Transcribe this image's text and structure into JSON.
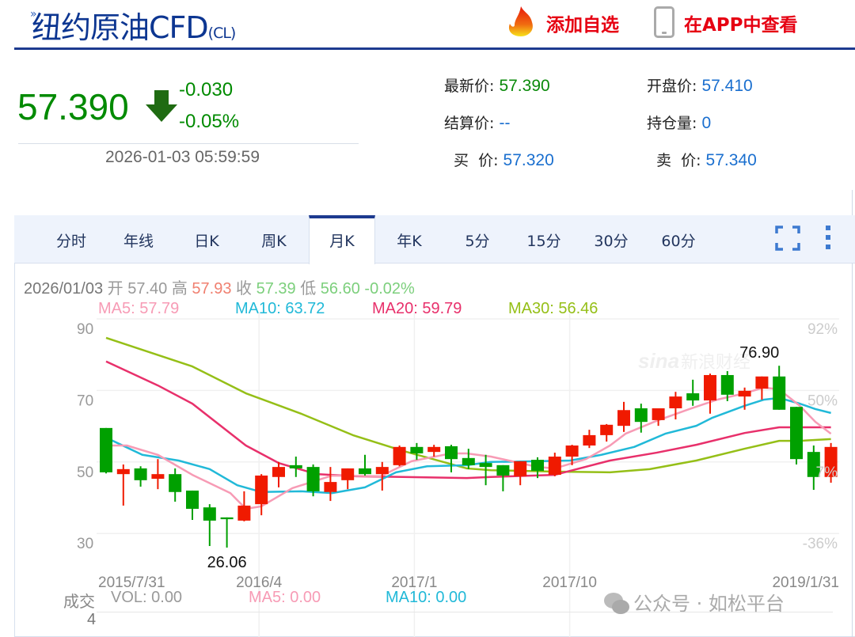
{
  "header": {
    "title": "纽约原油CFD",
    "code": "(CL)",
    "add_watchlist": "添加自选",
    "view_in_app": "在APP中查看"
  },
  "quote": {
    "price": "57.390",
    "direction": "down",
    "change": "-0.030",
    "change_pct": "-0.05%",
    "time": "2026-01-03 05:59:59"
  },
  "fields": [
    {
      "label": "最新价:",
      "value": "57.390",
      "color": "#0a8a0a"
    },
    {
      "label": "开盘价:",
      "value": "57.410",
      "color": "#1a6fcf"
    },
    {
      "label": "结算价:",
      "value": "--",
      "color": "#1a6fcf"
    },
    {
      "label": "持仓量:",
      "value": "0",
      "color": "#1a6fcf"
    },
    {
      "label": "买  价:",
      "value": "57.320",
      "color": "#1a6fcf"
    },
    {
      "label": "卖  价:",
      "value": "57.340",
      "color": "#1a6fcf"
    }
  ],
  "tabs": [
    {
      "label": "分时"
    },
    {
      "label": "年线"
    },
    {
      "label": "日K"
    },
    {
      "label": "周K"
    },
    {
      "label": "月K",
      "active": true
    },
    {
      "label": "年K"
    },
    {
      "label": "5分"
    },
    {
      "label": "15分"
    },
    {
      "label": "30分"
    },
    {
      "label": "60分"
    }
  ],
  "toolbar_icons": [
    "fullscreen-icon",
    "more-vertical-icon"
  ],
  "ohlc_info": {
    "date": "2026/01/03",
    "open_label": "开",
    "open": "57.40",
    "high_label": "高",
    "high": "57.93",
    "close_label": "收",
    "close": "57.39",
    "low_label": "低",
    "low": "56.60",
    "change": "-0.02%"
  },
  "ma_info": {
    "ma5": "MA5: 57.79",
    "ma10": "MA10: 63.72",
    "ma20": "MA20: 59.79",
    "ma30": "MA30: 56.46"
  },
  "volume": {
    "label": "成交",
    "vol": "VOL: 0.00",
    "ma5": "MA5: 0.00",
    "ma10": "MA10: 0.00",
    "axis_value": "4"
  },
  "watermark": {
    "sina": "sina新浪财经",
    "wechat": "公众号 · 如松平台"
  },
  "colors": {
    "up": "#f01a00",
    "down": "#00a000",
    "ma5": "#f79bb5",
    "ma10": "#21b9d8",
    "ma20": "#e8306b",
    "ma30": "#95bf17",
    "brand": "#1d3a8f"
  },
  "chart_data": {
    "type": "candlestick",
    "ylim": [
      26,
      90
    ],
    "y_ticks": [
      "90",
      "70",
      "50",
      "30"
    ],
    "y_ticks_right": [
      "92%",
      "50%",
      "7%",
      "-36%"
    ],
    "x_labels": [
      {
        "index": 0,
        "label": "2015/7/31"
      },
      {
        "index": 9,
        "label": "2016/4"
      },
      {
        "index": 18,
        "label": "2017/1"
      },
      {
        "index": 27,
        "label": "2017/10"
      },
      {
        "index": 42,
        "label": "2019/1/31"
      }
    ],
    "annotations": [
      {
        "index": 7,
        "label": "26.06"
      },
      {
        "index": 39,
        "label": "76.90"
      }
    ],
    "candles": [
      [
        59.5,
        59.5,
        46.8,
        47.1
      ],
      [
        46.6,
        49.3,
        37.8,
        48.0
      ],
      [
        48.2,
        48.8,
        43.1,
        44.9
      ],
      [
        45.3,
        50.8,
        42.4,
        46.6
      ],
      [
        46.6,
        48.2,
        38.9,
        41.6
      ],
      [
        42.0,
        42.0,
        33.8,
        36.9
      ],
      [
        37.3,
        38.2,
        26.5,
        33.6
      ],
      [
        34.5,
        34.5,
        26.06,
        34.0
      ],
      [
        33.6,
        41.8,
        33.4,
        37.8
      ],
      [
        38.2,
        46.6,
        35.1,
        46.2
      ],
      [
        45.8,
        50.0,
        42.9,
        48.6
      ],
      [
        49.1,
        51.5,
        45.8,
        48.2
      ],
      [
        48.6,
        49.3,
        40.4,
        41.8
      ],
      [
        41.6,
        48.6,
        39.1,
        44.4
      ],
      [
        44.9,
        48.2,
        42.4,
        48.2
      ],
      [
        48.2,
        52.0,
        46.2,
        46.6
      ],
      [
        46.6,
        50.0,
        42.0,
        48.6
      ],
      [
        49.1,
        54.6,
        48.8,
        54.2
      ],
      [
        54.2,
        55.3,
        50.6,
        52.4
      ],
      [
        52.8,
        54.8,
        51.5,
        54.2
      ],
      [
        54.4,
        54.8,
        47.1,
        50.8
      ],
      [
        51.1,
        53.7,
        48.0,
        49.1
      ],
      [
        49.7,
        52.0,
        43.5,
        48.6
      ],
      [
        49.1,
        49.1,
        41.8,
        46.2
      ],
      [
        46.0,
        50.2,
        43.5,
        50.2
      ],
      [
        50.6,
        51.3,
        45.5,
        47.5
      ],
      [
        46.4,
        52.6,
        46.0,
        51.5
      ],
      [
        51.5,
        54.8,
        49.1,
        54.6
      ],
      [
        54.6,
        59.0,
        53.9,
        57.5
      ],
      [
        57.5,
        60.6,
        55.7,
        60.4
      ],
      [
        60.1,
        66.8,
        58.4,
        64.5
      ],
      [
        65.0,
        66.3,
        58.2,
        61.2
      ],
      [
        61.7,
        65.0,
        60.1,
        65.0
      ],
      [
        65.0,
        69.6,
        61.9,
        68.3
      ],
      [
        69.2,
        73.0,
        65.7,
        67.2
      ],
      [
        67.2,
        74.7,
        63.5,
        74.3
      ],
      [
        74.3,
        75.4,
        67.0,
        68.8
      ],
      [
        68.3,
        70.8,
        64.6,
        69.9
      ],
      [
        70.5,
        73.9,
        67.4,
        73.9
      ],
      [
        73.9,
        76.9,
        64.6,
        64.6
      ],
      [
        65.4,
        65.4,
        49.3,
        50.8
      ],
      [
        52.8,
        54.6,
        42.2,
        45.8
      ],
      [
        45.8,
        55.3,
        44.2,
        54.2
      ]
    ],
    "candle_fields": [
      "open",
      "high",
      "low",
      "close"
    ],
    "ma_series": {
      "ma5": [
        [
          0,
          54.6
        ],
        [
          1.2,
          54.6
        ],
        [
          3,
          52.0
        ],
        [
          5,
          46.4
        ],
        [
          7.2,
          41.3
        ],
        [
          8.1,
          36.9
        ],
        [
          9,
          37.6
        ],
        [
          10.8,
          42.7
        ],
        [
          13.1,
          46.2
        ],
        [
          15.9,
          46.0
        ],
        [
          17.7,
          50.2
        ],
        [
          20,
          52.4
        ],
        [
          20.9,
          52.4
        ],
        [
          22.3,
          51.5
        ],
        [
          25,
          48.6
        ],
        [
          26,
          48.2
        ],
        [
          27.8,
          50.8
        ],
        [
          29.2,
          54.6
        ],
        [
          30.1,
          57.9
        ],
        [
          31.9,
          61.5
        ],
        [
          33.8,
          64.8
        ],
        [
          35.4,
          67.4
        ],
        [
          37,
          69.2
        ],
        [
          38.1,
          70.8
        ],
        [
          39,
          70.3
        ],
        [
          40.2,
          65.7
        ],
        [
          41.1,
          61.2
        ],
        [
          42,
          57.9
        ]
      ],
      "ma10": [
        [
          0,
          56.8
        ],
        [
          2.1,
          52.0
        ],
        [
          4.2,
          50.4
        ],
        [
          6,
          48.0
        ],
        [
          7.6,
          43.5
        ],
        [
          9,
          41.6
        ],
        [
          11.3,
          41.8
        ],
        [
          13.1,
          41.3
        ],
        [
          15,
          42.9
        ],
        [
          16.8,
          47.1
        ],
        [
          18.6,
          48.8
        ],
        [
          20.9,
          49.1
        ],
        [
          22.3,
          50.0
        ],
        [
          25,
          50.2
        ],
        [
          26.9,
          50.4
        ],
        [
          28.7,
          52.0
        ],
        [
          30.6,
          54.2
        ],
        [
          32.4,
          57.9
        ],
        [
          34.2,
          60.1
        ],
        [
          35.1,
          62.3
        ],
        [
          37,
          65.7
        ],
        [
          38.1,
          67.4
        ],
        [
          39,
          67.9
        ],
        [
          40.2,
          66.3
        ],
        [
          41.1,
          64.8
        ],
        [
          42,
          63.7
        ]
      ],
      "ma20": [
        [
          0,
          78.1
        ],
        [
          3,
          71.4
        ],
        [
          5,
          66.3
        ],
        [
          8.1,
          54.6
        ],
        [
          10,
          49.7
        ],
        [
          12.2,
          46.6
        ],
        [
          14.5,
          46.0
        ],
        [
          17.2,
          45.8
        ],
        [
          20.9,
          45.5
        ],
        [
          22.3,
          45.8
        ],
        [
          26,
          46.4
        ],
        [
          29.2,
          50.4
        ],
        [
          31.9,
          52.6
        ],
        [
          34.2,
          54.8
        ],
        [
          37,
          58.1
        ],
        [
          39,
          59.7
        ],
        [
          42,
          59.7
        ]
      ],
      "ma30": [
        [
          0,
          84.7
        ],
        [
          5,
          76.7
        ],
        [
          8.1,
          69.2
        ],
        [
          11.3,
          63.5
        ],
        [
          14.3,
          57.5
        ],
        [
          17.2,
          53.1
        ],
        [
          20.9,
          48.2
        ],
        [
          22.3,
          47.7
        ],
        [
          26,
          47.3
        ],
        [
          29.2,
          47.1
        ],
        [
          31.5,
          48.0
        ],
        [
          34.2,
          50.4
        ],
        [
          37,
          53.7
        ],
        [
          39,
          55.9
        ],
        [
          40.2,
          55.9
        ],
        [
          42,
          56.4
        ]
      ]
    }
  }
}
